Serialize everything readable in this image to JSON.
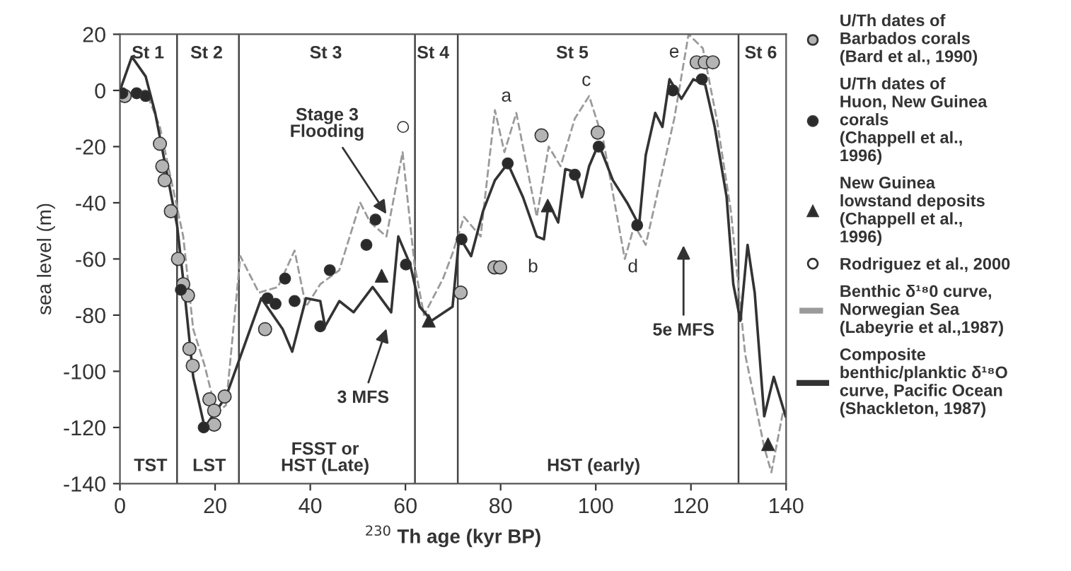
{
  "chart_data": {
    "type": "scatter",
    "xlabel": "$^{230}$ Th age (kyr BP)",
    "ylabel": "sea level (m)",
    "xlim": [
      0,
      140
    ],
    "ylim": [
      -140,
      20
    ],
    "xticks": [
      0,
      20,
      40,
      60,
      80,
      100,
      120,
      140
    ],
    "yticks": [
      -140,
      -120,
      -100,
      -80,
      -60,
      -40,
      -20,
      0,
      20
    ],
    "grid": false,
    "legend": "right",
    "series": [
      {
        "name": "U/Th dates of\nBarbados corals\n(Bard et al., 1990)",
        "marker": "circle",
        "color": "#b4b4b4",
        "x": [
          1,
          8.4,
          8.9,
          9.4,
          10.7,
          12.2,
          13.3,
          14.3,
          14.6,
          15.3,
          18.8,
          19.8,
          19.8,
          22,
          30.5,
          71.6,
          78.7,
          79.9,
          88.6,
          100.4,
          121.2,
          122.9,
          124.6
        ],
        "values": [
          -2,
          -19,
          -27,
          -32,
          -43,
          -60,
          -69,
          -73,
          -92,
          -98,
          -110,
          -119,
          -114,
          -109,
          -85,
          -72,
          -63,
          -63,
          -16,
          -15,
          10,
          10,
          10
        ]
      },
      {
        "name": "U/Th dates of\nHuon, New Guinea\ncorals\n(Chappell et al.,\n1996)",
        "marker": "circle",
        "color": "#2a2a2a",
        "x": [
          0.5,
          3.5,
          5.4,
          12.8,
          17.6,
          31,
          32.7,
          34.7,
          36.7,
          42.1,
          44.1,
          51.8,
          53.7,
          60.1,
          71.8,
          81.5,
          95.6,
          100.6,
          108.7,
          116.2,
          122.3
        ],
        "values": [
          -1,
          -1,
          -2,
          -71,
          -120,
          -74,
          -76,
          -67,
          -75,
          -84,
          -64,
          -55,
          -46,
          -62,
          -53,
          -26,
          -30,
          -20,
          -48,
          0,
          4
        ]
      },
      {
        "name": "New Guinea\nlowstand deposits\n(Chappell et al.,\n1996)",
        "marker": "triangle",
        "color": "#2a2a2a",
        "x": [
          55,
          64.9,
          89.9,
          136.2
        ],
        "values": [
          -66,
          -82,
          -41,
          -126
        ]
      },
      {
        "name": "Rodriguez et al., 2000",
        "marker": "circle",
        "color": "#ffffff",
        "x": [
          59.5
        ],
        "values": [
          -13
        ]
      },
      {
        "name": "Benthic δ¹⁸0 curve,\nNorwegian Sea\n(Labeyrie et al.,1987)",
        "type": "line",
        "marker": "none",
        "line_style": "dashed",
        "color": "#9a9a9a",
        "x": [
          0,
          5.4,
          8.4,
          13.3,
          15.4,
          17.8,
          20.3,
          22.3,
          24,
          25.3,
          29.2,
          33.2,
          36.7,
          39.1,
          42.1,
          46.1,
          50.5,
          52.6,
          56,
          59.4,
          61.9,
          63.9,
          67.9,
          69.9,
          72.3,
          75.8,
          78.8,
          80.8,
          83.3,
          87.6,
          90.1,
          92.6,
          95.6,
          98.6,
          101.6,
          106.1,
          108.1,
          110.5,
          116.5,
          119.5,
          122.5,
          125.4,
          128.4,
          131.4,
          135.4,
          136.9,
          139.4
        ],
        "values": [
          -2,
          0,
          -13,
          -52,
          -85,
          -98,
          -115,
          -112,
          -82,
          -59,
          -72,
          -70,
          -57,
          -77,
          -69,
          -64,
          -40,
          -47,
          -52,
          -22,
          -62,
          -80,
          -67,
          -58,
          -45,
          -52,
          -7,
          -22,
          -8,
          -45,
          -20,
          -27,
          -10,
          -2,
          -18,
          -60,
          -48,
          -55,
          -10,
          20,
          15,
          -10,
          -43,
          -94,
          -127,
          -136,
          -114
        ]
      },
      {
        "name": "Composite\nbenthic/planktic δ¹⁸O\ncurve, Pacific Ocean\n(Shackleton, 1987)",
        "type": "line",
        "marker": "none",
        "line_style": "solid",
        "color": "#333333",
        "x": [
          0,
          2.5,
          5.4,
          7.4,
          12,
          13.4,
          15.4,
          17.8,
          22.3,
          29.7,
          34.2,
          36.2,
          39.1,
          42.1,
          43.1,
          46.1,
          49.1,
          53.1,
          57,
          58.5,
          61,
          63,
          65.5,
          69.9,
          71.3,
          73.8,
          76.3,
          78.8,
          81.5,
          84.7,
          87.6,
          89.1,
          90.1,
          92.1,
          93.6,
          95.6,
          97.1,
          98.6,
          100.6,
          103.6,
          106.6,
          109.1,
          110.5,
          112.5,
          114,
          115.5,
          118,
          120.5,
          123,
          125,
          127.5,
          128.9,
          130.4,
          131.9,
          133.4,
          135.4,
          137.4,
          139.9
        ],
        "values": [
          0,
          12,
          5,
          -8,
          -48,
          -69,
          -102,
          -120,
          -109,
          -74,
          -85,
          -93,
          -74,
          -75,
          -84,
          -75,
          -79,
          -70,
          -79,
          -52,
          -62,
          -77,
          -82,
          -77,
          -52,
          -59,
          -43,
          -32,
          -26,
          -38,
          -52,
          -53,
          -40,
          -47,
          -28,
          -29,
          -38,
          -27,
          -19,
          -32,
          -40,
          -48,
          -23,
          -8,
          -13,
          4,
          -3,
          4,
          2,
          -13,
          -38,
          -69,
          -82,
          -55,
          -72,
          -116,
          -102,
          -116
        ]
      }
    ],
    "ref_lines": [
      {
        "axis": "x",
        "value": 12
      },
      {
        "axis": "x",
        "value": 25
      },
      {
        "axis": "x",
        "value": 62
      },
      {
        "axis": "x",
        "value": 71
      },
      {
        "axis": "x",
        "value": 130
      }
    ],
    "annotations": [
      "St 1",
      "St 2",
      "St 3",
      "St 4",
      "St 5",
      "St 6",
      "TST",
      "LST",
      "FSST or\nHST (Late)",
      "HST (early)",
      {
        "text": "Stage 3\nFlooding",
        "x": 56,
        "y": -44
      },
      "3 MFS",
      "5e MFS",
      "a",
      "b",
      "c",
      "d",
      "e"
    ]
  }
}
